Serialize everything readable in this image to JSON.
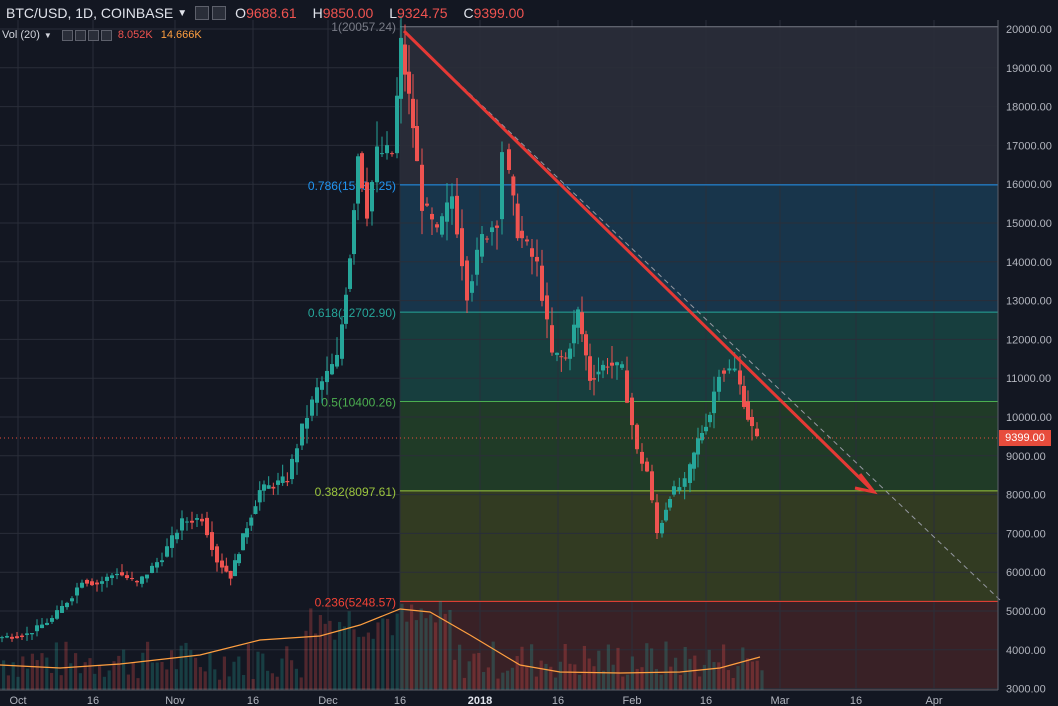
{
  "header": {
    "symbol": "BTC/USD, 1D, COINBASE",
    "open_label": "O",
    "open": "9688.61",
    "high_label": "H",
    "high": "9850.00",
    "low_label": "L",
    "low": "9324.75",
    "close_label": "C",
    "close": "9399.00"
  },
  "volume": {
    "label": "Vol (20)",
    "value1": "8.052K",
    "value2": "14.666K"
  },
  "price_axis": {
    "ticks": [
      "20000.00",
      "19000.00",
      "18000.00",
      "17000.00",
      "16000.00",
      "15000.00",
      "14000.00",
      "13000.00",
      "12000.00",
      "11000.00",
      "10000.00",
      "9000.00",
      "8000.00",
      "7000.00",
      "6000.00",
      "5000.00",
      "4000.00",
      "3000.00"
    ],
    "current_price": "9399.00"
  },
  "time_axis": {
    "labels": [
      "Oct",
      "16",
      "Nov",
      "16",
      "Dec",
      "16",
      "2018",
      "16",
      "Feb",
      "16",
      "Mar",
      "16",
      "Apr"
    ]
  },
  "fib_levels": [
    {
      "label": "1(20057.24)",
      "price": 20057.24,
      "color": "#787b86"
    },
    {
      "label": "0.786(15981.25)",
      "price": 15981.25,
      "color": "#2196f3"
    },
    {
      "label": "0.618(12702.90)",
      "price": 12702.9,
      "color": "#26a69a"
    },
    {
      "label": "0.5(10400.26)",
      "price": 10400.26,
      "color": "#4caf50"
    },
    {
      "label": "0.382(8097.61)",
      "price": 8097.61,
      "color": "#9bc53d"
    },
    {
      "label": "0.236(5248.57)",
      "price": 5248.57,
      "color": "#f44336"
    }
  ],
  "colors": {
    "up": "#26a69a",
    "down": "#ef5350",
    "trend": "#e53935",
    "volume_ma": "#ff9f40"
  },
  "chart_data": {
    "type": "candlestick",
    "title": "BTC/USD, 1D, COINBASE",
    "ylim": [
      3000,
      20200
    ],
    "x_labels": [
      "Oct",
      "16",
      "Nov",
      "16",
      "Dec",
      "16",
      "2018",
      "16",
      "Feb",
      "16",
      "Mar",
      "16",
      "Apr"
    ],
    "series": [
      {
        "date": "2017-10-01",
        "close": 4400
      },
      {
        "date": "2017-10-08",
        "close": 4700
      },
      {
        "date": "2017-10-12",
        "close": 5400
      },
      {
        "date": "2017-10-16",
        "close": 5700
      },
      {
        "date": "2017-10-22",
        "close": 5900
      },
      {
        "date": "2017-10-26",
        "close": 5700
      },
      {
        "date": "2017-11-01",
        "close": 6600
      },
      {
        "date": "2017-11-08",
        "close": 7300
      },
      {
        "date": "2017-11-12",
        "close": 5900
      },
      {
        "date": "2017-11-16",
        "close": 7800
      },
      {
        "date": "2017-11-26",
        "close": 9300
      },
      {
        "date": "2017-11-29",
        "close": 9900
      },
      {
        "date": "2017-12-04",
        "close": 11500
      },
      {
        "date": "2017-12-07",
        "close": 16700
      },
      {
        "date": "2017-12-10",
        "close": 15300
      },
      {
        "date": "2017-12-13",
        "close": 16800
      },
      {
        "date": "2017-12-17",
        "close": 19500
      },
      {
        "date": "2017-12-22",
        "close": 14600
      },
      {
        "date": "2017-12-26",
        "close": 15800
      },
      {
        "date": "2017-12-31",
        "close": 14000
      },
      {
        "date": "2018-01-06",
        "close": 16900
      },
      {
        "date": "2018-01-10",
        "close": 14800
      },
      {
        "date": "2018-01-16",
        "close": 11400
      },
      {
        "date": "2018-01-20",
        "close": 12700
      },
      {
        "date": "2018-01-28",
        "close": 11300
      },
      {
        "date": "2018-02-01",
        "close": 9100
      },
      {
        "date": "2018-02-05",
        "close": 6900
      },
      {
        "date": "2018-02-10",
        "close": 8200
      },
      {
        "date": "2018-02-16",
        "close": 10100
      },
      {
        "date": "2018-02-20",
        "close": 11200
      },
      {
        "date": "2018-02-24",
        "close": 9600
      }
    ]
  }
}
